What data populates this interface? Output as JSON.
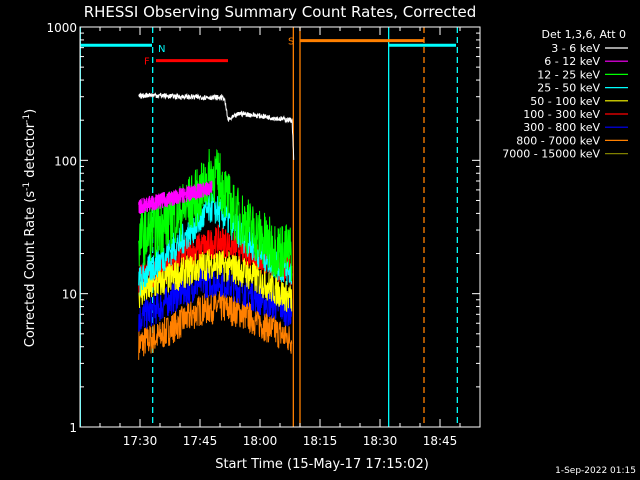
{
  "chart_data": {
    "type": "line",
    "title": "RHESSI Observing Summary Count Rates, Corrected",
    "xlabel": "Start Time (15-May-17 17:15:02)",
    "ylabel_main": "Corrected Count Rate (s",
    "ylabel_sup1": "-1",
    "ylabel_mid": " detector",
    "ylabel_sup2": "-1",
    "ylabel_end": ")",
    "y_scale": "log",
    "ylim": [
      1,
      1000
    ],
    "xlim": [
      "17:15",
      "18:55"
    ],
    "x_ticks": [
      "17:30",
      "17:45",
      "18:00",
      "18:15",
      "18:30",
      "18:45"
    ],
    "y_ticks": [
      "1",
      "10",
      "100",
      "1000"
    ],
    "legend_header": "Det 1,3,6, Att 0",
    "legend_position": "top-right, outside plot",
    "series": [
      {
        "name": "3 - 6 keV",
        "color": "#ffffff",
        "points": [
          [
            "17:29:40",
            300
          ],
          [
            "17:32",
            310
          ],
          [
            "17:40",
            300
          ],
          [
            "17:51",
            295
          ],
          [
            "17:52",
            200
          ],
          [
            "17:55",
            225
          ],
          [
            "18:00",
            215
          ],
          [
            "18:05",
            205
          ],
          [
            "18:08",
            200
          ],
          [
            "18:08:30",
            80
          ]
        ]
      },
      {
        "name": "6 - 12 keV",
        "color": "#ff00ff",
        "points": [
          [
            "17:29:40",
            45
          ],
          [
            "17:33",
            48
          ],
          [
            "17:38",
            52
          ],
          [
            "17:44",
            58
          ],
          [
            "17:48",
            62
          ]
        ]
      },
      {
        "name": "12 - 25 keV",
        "color": "#00ff00",
        "points": [
          [
            "17:29:40",
            25
          ],
          [
            "17:35",
            32
          ],
          [
            "17:40",
            40
          ],
          [
            "17:45",
            55
          ],
          [
            "17:48",
            80
          ],
          [
            "17:50",
            70
          ],
          [
            "17:53",
            42
          ],
          [
            "17:58",
            30
          ],
          [
            "18:03",
            22
          ],
          [
            "18:08",
            20
          ]
        ]
      },
      {
        "name": "25 - 50 keV",
        "color": "#00ffff",
        "points": [
          [
            "17:29:40",
            12
          ],
          [
            "17:35",
            18
          ],
          [
            "17:40",
            24
          ],
          [
            "17:45",
            35
          ],
          [
            "17:48",
            45
          ],
          [
            "17:51",
            38
          ],
          [
            "17:55",
            28
          ],
          [
            "18:00",
            20
          ],
          [
            "18:05",
            16
          ],
          [
            "18:08",
            14
          ]
        ]
      },
      {
        "name": "50 - 100 keV",
        "color": "#ffff00",
        "points": [
          [
            "17:29:40",
            10
          ],
          [
            "17:40",
            14
          ],
          [
            "17:48",
            17
          ],
          [
            "17:55",
            15
          ],
          [
            "18:03",
            11
          ],
          [
            "18:08",
            9
          ]
        ]
      },
      {
        "name": "100 - 300 keV",
        "color": "#ff0000",
        "points": [
          [
            "17:29:40",
            13
          ],
          [
            "17:35",
            15
          ],
          [
            "17:40",
            19
          ],
          [
            "17:45",
            22
          ],
          [
            "17:50",
            25
          ],
          [
            "17:55",
            22
          ],
          [
            "18:00",
            18
          ],
          [
            "18:05",
            16
          ],
          [
            "18:08",
            15
          ]
        ]
      },
      {
        "name": "300 - 800 keV",
        "color": "#0000ff",
        "points": [
          [
            "17:29:40",
            6.5
          ],
          [
            "17:35",
            8
          ],
          [
            "17:40",
            10
          ],
          [
            "17:45",
            12
          ],
          [
            "17:50",
            12.5
          ],
          [
            "17:55",
            11
          ],
          [
            "18:00",
            9
          ],
          [
            "18:05",
            8
          ],
          [
            "18:08",
            7
          ]
        ]
      },
      {
        "name": "800 - 7000 keV",
        "color": "#ff8000",
        "points": [
          [
            "17:29:40",
            4.2
          ],
          [
            "17:35",
            4.8
          ],
          [
            "17:40",
            6
          ],
          [
            "17:45",
            7.5
          ],
          [
            "17:50",
            8
          ],
          [
            "17:55",
            7.2
          ],
          [
            "18:00",
            6
          ],
          [
            "18:05",
            5
          ],
          [
            "18:08",
            4.5
          ]
        ]
      },
      {
        "name": "7000 - 15000 keV",
        "color": "#808000",
        "points": []
      }
    ],
    "flag_bars": [
      {
        "label": "N",
        "color": "#00ffff",
        "x_start": "17:15",
        "x_end": "17:33",
        "y": 730,
        "label_x": "17:33"
      },
      {
        "label": "N",
        "color": "#00ffff",
        "x_start": "18:32",
        "x_end": "18:49",
        "y": 730
      },
      {
        "label": "F",
        "color": "#ff0000",
        "x_start": "17:34",
        "x_end": "17:52",
        "y": 560,
        "label_x": "17:34"
      },
      {
        "label": "S",
        "color": "#ff8000",
        "x_start": "18:10",
        "x_end": "18:41",
        "y": 790,
        "label_x": "18:10"
      }
    ],
    "vlines": [
      {
        "x": "17:15:05",
        "color": "#00ffff",
        "style": "solid"
      },
      {
        "x": "17:33:10",
        "color": "#00ffff",
        "style": "dashed"
      },
      {
        "x": "18:08:20",
        "color": "#ff8000",
        "style": "solid"
      },
      {
        "x": "18:10:00",
        "color": "#ff8000",
        "style": "solid"
      },
      {
        "x": "18:32:10",
        "color": "#00ffff",
        "style": "solid"
      },
      {
        "x": "18:41:00",
        "color": "#ff8000",
        "style": "dashed"
      },
      {
        "x": "18:49:20",
        "color": "#00ffff",
        "style": "dashed"
      }
    ],
    "grid": false,
    "timestamp": "1-Sep-2022 01:15"
  }
}
